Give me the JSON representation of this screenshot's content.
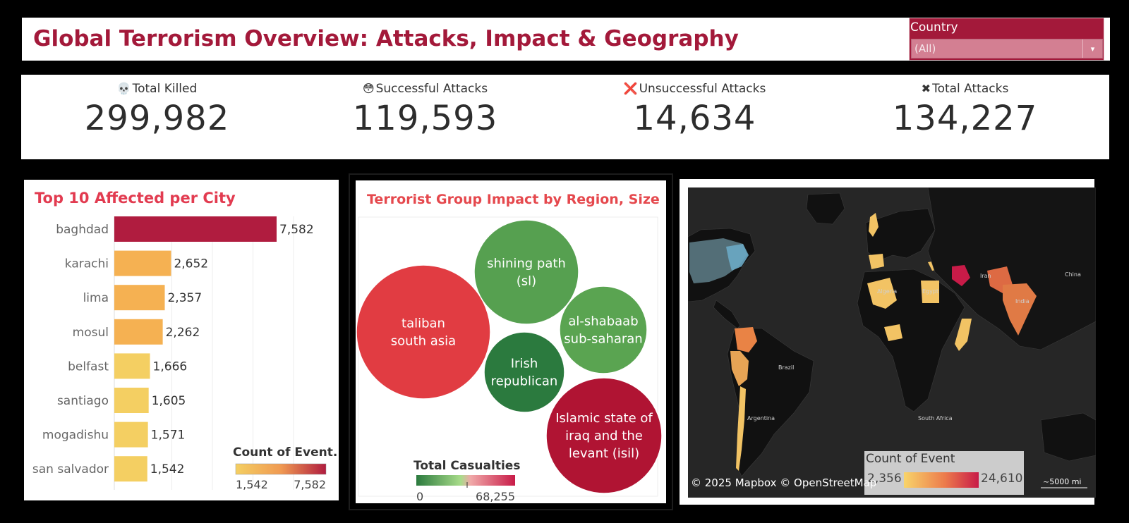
{
  "header": {
    "title": "Global Terrorism Overview: Attacks, Impact & Geography"
  },
  "filter": {
    "label": "Country",
    "value": "(All)",
    "caret": "▾"
  },
  "kpis": [
    {
      "icon": "💀",
      "label": "Total Killed",
      "value": "299,982"
    },
    {
      "icon": "😳",
      "label": "Successful Attacks",
      "value": "119,593"
    },
    {
      "icon": "❌",
      "label": "Unsuccessful Attacks",
      "value": "14,634"
    },
    {
      "icon": "✖",
      "label": "Total Attacks",
      "value": "134,227"
    }
  ],
  "colors": {
    "brand": "#a3193a",
    "bar_top": "#b01c3f",
    "bar_orange": "#f5b152",
    "bar_yellow": "#f4cf62",
    "bubble_red": "#e13c42",
    "bubble_green": "#56a050",
    "bubble_darkgreen": "#2b7a3e",
    "bubble_crimson": "#b01433",
    "map_bg": "#262626",
    "land": "#111111"
  },
  "chart_data": [
    {
      "type": "bar",
      "title": "Top 10 Affected per City",
      "categories": [
        "baghdad",
        "karachi",
        "lima",
        "mosul",
        "belfast",
        "santiago",
        "mogadishu",
        "san salvador"
      ],
      "values": [
        7582,
        2652,
        2357,
        2262,
        1666,
        1605,
        1571,
        1542
      ],
      "value_labels": [
        "7,582",
        "2,652",
        "2,357",
        "2,262",
        "1,666",
        "1,605",
        "1,571",
        "1,542"
      ],
      "legend": {
        "title": "Count of Event..",
        "min_label": "1,542",
        "max_label": "7,582",
        "placement": "bottom-right"
      }
    },
    {
      "type": "scatter",
      "title": "Terrorist Group Impact by Region, Size",
      "bubbles": [
        {
          "line1": "taliban",
          "line2": "south asia",
          "line3": "",
          "color": "#e13c42"
        },
        {
          "line1": "shining path",
          "line2": "(sl)",
          "line3": "",
          "color": "#56a050"
        },
        {
          "line1": "al-shabaab",
          "line2": "sub-saharan",
          "line3": "",
          "color": "#5aa451"
        },
        {
          "line1": "Irish",
          "line2": "republican",
          "line3": "",
          "color": "#2b7a3e"
        },
        {
          "line1": "Islamic state of",
          "line2": "iraq and the",
          "line3": "levant (isil)",
          "color": "#b01433"
        }
      ],
      "legend": {
        "title": "Total Casualties",
        "min_label": "0",
        "max_label": "68,255",
        "placement": "bottom-left"
      }
    },
    {
      "type": "heatmap",
      "map_labels": [
        "Algeria",
        "Iran",
        "China",
        "India",
        "Brazil",
        "Argentina",
        "South Africa",
        "Egypt"
      ],
      "legend": {
        "title": "Count of Event",
        "min_label": "2,356",
        "max_label": "24,610",
        "placement": "bottom-right"
      },
      "attribution": "© 2025 Mapbox © OpenStreetMap",
      "scale": "~5000 mi"
    }
  ]
}
